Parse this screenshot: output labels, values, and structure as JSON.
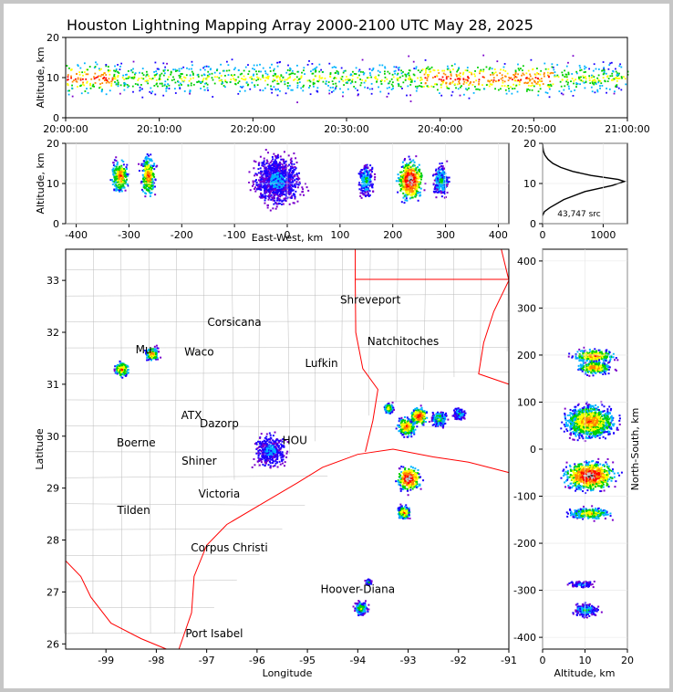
{
  "title": "Houston Lightning Mapping Array 2000-2100 UTC May 28, 2025",
  "colors": {
    "border": "#c6c6c6",
    "state_lines": "#ff0000",
    "county_lines": "#bbbbbb",
    "source_ramp": [
      "#7a00cc",
      "#1a00ff",
      "#00b4ff",
      "#00d000",
      "#ffff00",
      "#ff8800",
      "#ff0000",
      "#c8c8c8",
      "#303030"
    ]
  },
  "chart_data": [
    {
      "type": "scatter",
      "name": "time-height",
      "xlabel": "",
      "ylabel": "Altitude, km",
      "x_ticks": [
        "20:00:00",
        "20:10:00",
        "20:20:00",
        "20:30:00",
        "20:40:00",
        "20:50:00",
        "21:00:00"
      ],
      "xlim_minutes": [
        0,
        60
      ],
      "ylim": [
        0,
        20
      ],
      "y_ticks": [
        0,
        10,
        20
      ],
      "activity_core_km": [
        6,
        14
      ]
    },
    {
      "type": "scatter",
      "name": "east-west-altitude",
      "xlabel": "East-West, km",
      "ylabel": "Altitude, km",
      "xlim": [
        -420,
        420
      ],
      "x_ticks": [
        -400,
        -300,
        -200,
        -100,
        0,
        100,
        200,
        300,
        400
      ],
      "ylim": [
        0,
        20
      ],
      "y_ticks": [
        0,
        10,
        20
      ],
      "cells": [
        {
          "x": -318,
          "alt": 12,
          "wx": 16,
          "wa": 4,
          "peak": 6
        },
        {
          "x": -265,
          "alt": 12,
          "wx": 14,
          "wa": 5,
          "peak": 6
        },
        {
          "x": -20,
          "alt": 11,
          "wx": 45,
          "wa": 6,
          "peak": 2
        },
        {
          "x": 148,
          "alt": 11,
          "wx": 14,
          "wa": 4,
          "peak": 3
        },
        {
          "x": 232,
          "alt": 11,
          "wx": 24,
          "wa": 5,
          "peak": 8
        },
        {
          "x": 290,
          "alt": 11,
          "wx": 16,
          "wa": 4,
          "peak": 3
        }
      ]
    },
    {
      "type": "line",
      "name": "altitude-histogram",
      "annotation": "43,747 src",
      "xlim": [
        0,
        1400
      ],
      "x_ticks": [
        0,
        1000
      ],
      "ylim": [
        0,
        20
      ],
      "y_ticks": [
        0,
        10,
        20
      ],
      "profile": [
        [
          0,
          2
        ],
        [
          30,
          3
        ],
        [
          120,
          4
        ],
        [
          350,
          6
        ],
        [
          700,
          8
        ],
        [
          1150,
          9.5
        ],
        [
          1350,
          10.5
        ],
        [
          1250,
          11
        ],
        [
          800,
          12
        ],
        [
          500,
          13
        ],
        [
          300,
          14
        ],
        [
          170,
          15
        ],
        [
          90,
          16
        ],
        [
          40,
          17
        ],
        [
          15,
          18
        ],
        [
          5,
          19
        ],
        [
          0,
          20
        ]
      ]
    },
    {
      "type": "scatter",
      "name": "plan-view",
      "xlabel": "Longitude",
      "ylabel": "Latitude",
      "xlim": [
        -99.8,
        -91
      ],
      "x_ticks": [
        -99,
        -98,
        -97,
        -96,
        -95,
        -94,
        -93,
        -92,
        -91
      ],
      "ylim": [
        25.9,
        33.6
      ],
      "y_ticks": [
        26,
        27,
        28,
        29,
        30,
        31,
        32,
        33
      ],
      "cells": [
        {
          "lon": -98.7,
          "lat": 31.3,
          "r": 0.15,
          "peak": 6
        },
        {
          "lon": -98.1,
          "lat": 31.6,
          "r": 0.14,
          "peak": 6
        },
        {
          "lon": -95.75,
          "lat": 29.75,
          "r": 0.35,
          "peak": 2
        },
        {
          "lon": -93.05,
          "lat": 30.2,
          "r": 0.2,
          "peak": 6
        },
        {
          "lon": -92.8,
          "lat": 30.4,
          "r": 0.18,
          "peak": 7
        },
        {
          "lon": -93.4,
          "lat": 30.55,
          "r": 0.1,
          "peak": 5
        },
        {
          "lon": -92.4,
          "lat": 30.35,
          "r": 0.16,
          "peak": 4
        },
        {
          "lon": -92.0,
          "lat": 30.45,
          "r": 0.12,
          "peak": 3
        },
        {
          "lon": -93.0,
          "lat": 29.2,
          "r": 0.25,
          "peak": 8
        },
        {
          "lon": -93.1,
          "lat": 28.55,
          "r": 0.14,
          "peak": 6
        },
        {
          "lon": -93.8,
          "lat": 27.2,
          "r": 0.06,
          "peak": 3
        },
        {
          "lon": -93.95,
          "lat": 26.7,
          "r": 0.14,
          "peak": 4
        }
      ],
      "cities": [
        {
          "name": "Shreveport",
          "lon": -93.75,
          "lat": 32.55,
          "color": "#000000"
        },
        {
          "name": "Corsicana",
          "lon": -96.45,
          "lat": 32.12,
          "color": "#000000"
        },
        {
          "name": "Natchitoches",
          "lon": -93.1,
          "lat": 31.75,
          "color": "#000000"
        },
        {
          "name": "Waco",
          "lon": -97.15,
          "lat": 31.55,
          "color": "#000000"
        },
        {
          "name": "Lufkin",
          "lon": -94.72,
          "lat": 31.33,
          "color": "#000000"
        },
        {
          "name": "Mu",
          "lon": -98.25,
          "lat": 31.6,
          "color": "#ff9933"
        },
        {
          "name": "ATX",
          "lon": -97.3,
          "lat": 30.33,
          "color": "#ff9933"
        },
        {
          "name": "Dazorp",
          "lon": -96.75,
          "lat": 30.17,
          "color": "#000000"
        },
        {
          "name": "Boerne",
          "lon": -98.4,
          "lat": 29.8,
          "color": "#000000"
        },
        {
          "name": "Shiner",
          "lon": -97.15,
          "lat": 29.45,
          "color": "#000000"
        },
        {
          "name": "Victoria",
          "lon": -96.75,
          "lat": 28.82,
          "color": "#000000"
        },
        {
          "name": "Tilden",
          "lon": -98.45,
          "lat": 28.5,
          "color": "#000000"
        },
        {
          "name": "Corpus Christi",
          "lon": -96.55,
          "lat": 27.78,
          "color": "#000000"
        },
        {
          "name": "Hoover-Diana",
          "lon": -94.0,
          "lat": 26.98,
          "color": "#2222ff"
        },
        {
          "name": "Port Isabel",
          "lon": -96.85,
          "lat": 26.13,
          "color": "#000000"
        },
        {
          "name": "HOU",
          "lon": -95.25,
          "lat": 29.85,
          "color": "#ffcc00"
        }
      ]
    },
    {
      "type": "scatter",
      "name": "north-south-altitude",
      "xlabel": "Altitude, km",
      "ylabel": "North-South, km",
      "xlim": [
        0,
        20
      ],
      "x_ticks": [
        0,
        10,
        20
      ],
      "ylim": [
        -425,
        425
      ],
      "y_ticks": [
        -400,
        -300,
        -200,
        -100,
        0,
        100,
        200,
        300,
        400
      ],
      "cells": [
        {
          "y": 200,
          "alt": 12,
          "wy": 14,
          "wa": 5,
          "peak": 6
        },
        {
          "y": 175,
          "alt": 12,
          "wy": 14,
          "wa": 4,
          "peak": 6
        },
        {
          "y": 60,
          "alt": 11,
          "wy": 35,
          "wa": 6,
          "peak": 6
        },
        {
          "y": -55,
          "alt": 11,
          "wy": 30,
          "wa": 6,
          "peak": 8
        },
        {
          "y": -135,
          "alt": 11,
          "wy": 12,
          "wa": 5,
          "peak": 5
        },
        {
          "y": -285,
          "alt": 9,
          "wy": 8,
          "wa": 3,
          "peak": 2
        },
        {
          "y": -340,
          "alt": 10,
          "wy": 14,
          "wa": 3,
          "peak": 3
        }
      ]
    }
  ]
}
